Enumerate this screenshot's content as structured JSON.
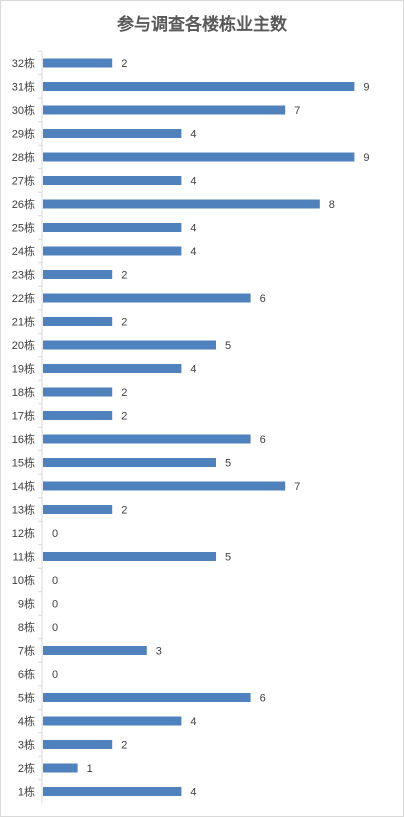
{
  "chart_data": {
    "type": "bar",
    "orientation": "horizontal",
    "title": "参与调查各楼栋业主数",
    "categories": [
      "32栋",
      "31栋",
      "30栋",
      "29栋",
      "28栋",
      "27栋",
      "26栋",
      "25栋",
      "24栋",
      "23栋",
      "22栋",
      "21栋",
      "20栋",
      "19栋",
      "18栋",
      "17栋",
      "16栋",
      "15栋",
      "14栋",
      "13栋",
      "12栋",
      "11栋",
      "10栋",
      "9栋",
      "8栋",
      "7栋",
      "6栋",
      "5栋",
      "4栋",
      "3栋",
      "2栋",
      "1栋"
    ],
    "values": [
      2,
      9,
      7,
      4,
      9,
      4,
      8,
      4,
      4,
      2,
      6,
      2,
      5,
      4,
      2,
      2,
      6,
      5,
      7,
      2,
      0,
      5,
      0,
      0,
      0,
      3,
      0,
      6,
      4,
      2,
      1,
      4
    ],
    "xlim": [
      0,
      10
    ],
    "bar_color": "#4f81bd",
    "grid": false,
    "data_labels": true
  }
}
